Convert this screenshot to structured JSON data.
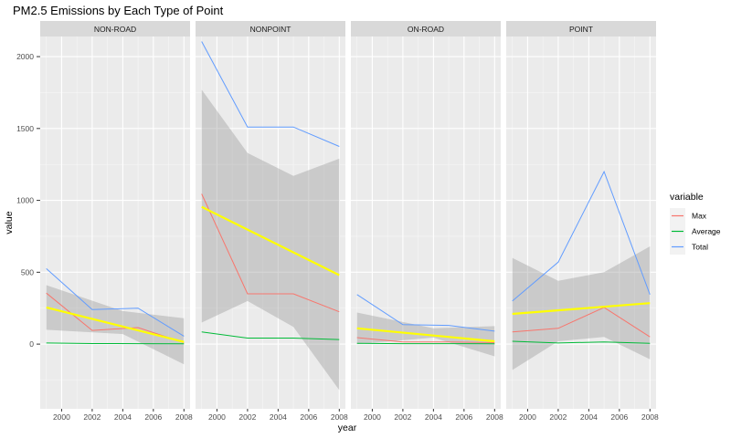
{
  "chart_data": {
    "type": "line",
    "title": "PM2.5 Emissions by Each Type of Point",
    "xlabel": "year",
    "ylabel": "value",
    "x_ticks": [
      2000,
      2002,
      2004,
      2006,
      2008
    ],
    "y_ticks": [
      0,
      500,
      1000,
      1500,
      2000
    ],
    "xlim": [
      1998.6,
      2008.4
    ],
    "ylim": [
      -450,
      2140
    ],
    "grid": true,
    "legend": {
      "title": "variable",
      "placement": "right",
      "entries": [
        "Max",
        "Average",
        "Total"
      ]
    },
    "colors": {
      "Max": "#F8766D",
      "Average": "#00BA38",
      "Total": "#619CFF",
      "trend": "#FFFF00",
      "ribbon": "#999999",
      "panel": "#EBEBEB",
      "strip": "#D9D9D9"
    },
    "years": [
      1999,
      2002,
      2005,
      2008
    ],
    "panels": [
      {
        "name": "NON-ROAD",
        "series": {
          "Max": [
            355,
            95,
            115,
            10
          ],
          "Average": [
            8,
            4,
            3,
            2
          ],
          "Total": [
            525,
            240,
            250,
            55
          ]
        },
        "trend": {
          "start": [
            1999,
            255
          ],
          "end": [
            2008,
            15
          ]
        },
        "ribbon": {
          "upper": [
            [
              1999,
              410
            ],
            [
              2004,
              230
            ],
            [
              2008,
              180
            ]
          ],
          "lower": [
            [
              1999,
              100
            ],
            [
              2004,
              70
            ],
            [
              2008,
              -140
            ]
          ]
        }
      },
      {
        "name": "NONPOINT",
        "series": {
          "Max": [
            1045,
            350,
            350,
            225
          ],
          "Average": [
            85,
            42,
            42,
            32
          ],
          "Total": [
            2105,
            1510,
            1510,
            1375
          ]
        },
        "trend": {
          "start": [
            1999,
            955
          ],
          "end": [
            2008,
            480
          ]
        },
        "ribbon": {
          "upper": [
            [
              1999,
              1770
            ],
            [
              2002,
              1330
            ],
            [
              2005,
              1170
            ],
            [
              2008,
              1290
            ]
          ],
          "lower": [
            [
              1999,
              150
            ],
            [
              2002,
              300
            ],
            [
              2005,
              120
            ],
            [
              2008,
              -320
            ]
          ]
        }
      },
      {
        "name": "ON-ROAD",
        "series": {
          "Max": [
            45,
            15,
            15,
            10
          ],
          "Average": [
            5,
            3,
            3,
            2
          ],
          "Total": [
            345,
            135,
            130,
            90
          ]
        },
        "trend": {
          "start": [
            1999,
            110
          ],
          "end": [
            2008,
            20
          ]
        },
        "ribbon": {
          "upper": [
            [
              1999,
              220
            ],
            [
              2004,
              110
            ],
            [
              2008,
              125
            ]
          ],
          "lower": [
            [
              1999,
              0
            ],
            [
              2004,
              45
            ],
            [
              2008,
              -85
            ]
          ]
        }
      },
      {
        "name": "POINT",
        "series": {
          "Max": [
            85,
            110,
            255,
            50
          ],
          "Average": [
            20,
            8,
            15,
            5
          ],
          "Total": [
            300,
            570,
            1200,
            345
          ]
        },
        "trend": {
          "start": [
            1999,
            210
          ],
          "end": [
            2008,
            285
          ]
        },
        "ribbon": {
          "upper": [
            [
              1999,
              600
            ],
            [
              2002,
              440
            ],
            [
              2005,
              500
            ],
            [
              2008,
              680
            ]
          ],
          "lower": [
            [
              1999,
              -180
            ],
            [
              2002,
              20
            ],
            [
              2005,
              50
            ],
            [
              2008,
              -105
            ]
          ]
        }
      }
    ]
  }
}
